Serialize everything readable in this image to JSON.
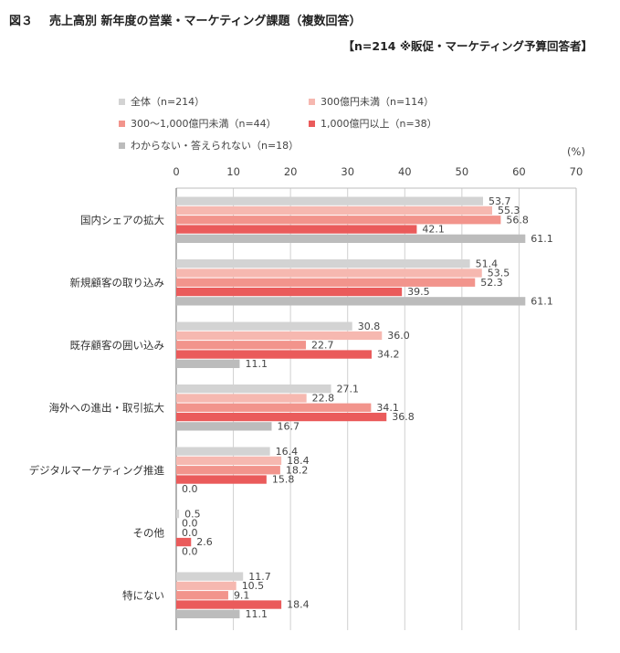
{
  "header": {
    "figure_label": "図３",
    "title": "売上高別 新年度の営業・マーケティング課題（複数回答）",
    "note": "【n=214 ※販促・マーケティング予算回答者】"
  },
  "colors": {
    "overall": "#d3d3d3",
    "under_300": "#f6b8b0",
    "300_to_1000": "#f2948c",
    "over_1000": "#ea5b5b",
    "unknown": "#bcbcbc"
  },
  "chart_data": {
    "type": "bar",
    "orientation": "horizontal",
    "unit_label": "(%)",
    "xlim": [
      0,
      70
    ],
    "xticks": [
      "0",
      "10",
      "20",
      "30",
      "40",
      "50",
      "60",
      "70"
    ],
    "grid": true,
    "legend_position": "top",
    "categories": [
      "国内シェアの拡大",
      "新規顧客の取り込み",
      "既存顧客の囲い込み",
      "海外への進出・取引拡大",
      "デジタルマーケティング推進",
      "その他",
      "特にない"
    ],
    "series": [
      {
        "name": "全体（n=214）",
        "color_key": "overall",
        "values": [
          53.7,
          51.4,
          30.8,
          27.1,
          16.4,
          0.5,
          11.7
        ]
      },
      {
        "name": "300億円未満（n=114）",
        "color_key": "under_300",
        "values": [
          55.3,
          53.5,
          36.0,
          22.8,
          18.4,
          0.0,
          10.5
        ]
      },
      {
        "name": "300～1,000億円未満（n=44）",
        "color_key": "300_to_1000",
        "values": [
          56.8,
          52.3,
          22.7,
          34.1,
          18.2,
          0.0,
          9.1
        ]
      },
      {
        "name": "1,000億円以上（n=38）",
        "color_key": "over_1000",
        "values": [
          42.1,
          39.5,
          34.2,
          36.8,
          15.8,
          2.6,
          18.4
        ]
      },
      {
        "name": "わからない・答えられない（n=18）",
        "color_key": "unknown",
        "values": [
          61.1,
          61.1,
          11.1,
          16.7,
          0.0,
          0.0,
          11.1
        ]
      }
    ]
  }
}
